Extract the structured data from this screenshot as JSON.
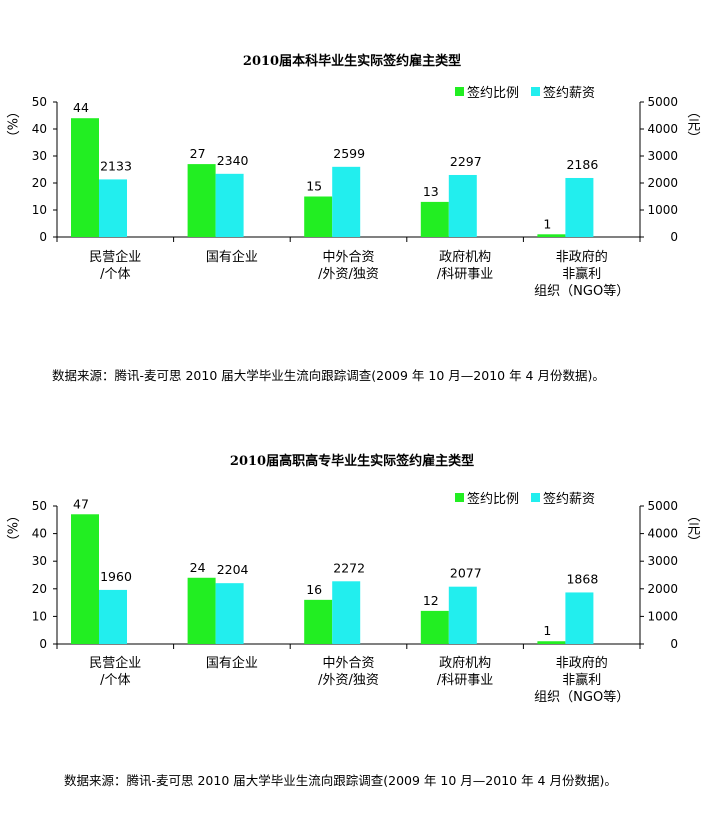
{
  "charts": [
    {
      "title": "2010届本科毕业生实际签约雇主类型",
      "source": "数据来源：腾讯-麦可思 2010 届大学毕业生流向跟踪调查(2009 年 10 月—2010 年 4 月份数据)。"
    },
    {
      "title": "2010届高职高专毕业生实际签约雇主类型",
      "source": "数据来源：腾讯-麦可思 2010 届大学毕业生流向跟踪调查(2009 年 10 月—2010 年 4 月份数据)。"
    }
  ],
  "chart_data": [
    {
      "type": "bar",
      "title": "2010届本科毕业生实际签约雇主类型",
      "categories": [
        "民营企业\n/个体",
        "国有企业",
        "中外合资\n/外资/独资",
        "政府机构\n/科研事业",
        "非政府的\n非赢利\n组织（NGO等）"
      ],
      "series": [
        {
          "name": "签约比例",
          "axis": "left",
          "color": "#22ee22",
          "values": [
            44,
            27,
            15,
            13,
            1
          ]
        },
        {
          "name": "签约薪资",
          "axis": "right",
          "color": "#22eeee",
          "values": [
            2133,
            2340,
            2599,
            2297,
            2186
          ]
        }
      ],
      "ylabel_left": "（%）",
      "ylabel_right": "（元）",
      "ylim_left": [
        0,
        50
      ],
      "ylim_right": [
        0,
        5000
      ],
      "yticks_left": [
        0,
        10,
        20,
        30,
        40,
        50
      ],
      "yticks_right": [
        0,
        1000,
        2000,
        3000,
        4000,
        5000
      ],
      "legend": "top-right",
      "grid": false
    },
    {
      "type": "bar",
      "title": "2010届高职高专毕业生实际签约雇主类型",
      "categories": [
        "民营企业\n/个体",
        "国有企业",
        "中外合资\n/外资/独资",
        "政府机构\n/科研事业",
        "非政府的\n非赢利\n组织（NGO等）"
      ],
      "series": [
        {
          "name": "签约比例",
          "axis": "left",
          "color": "#22ee22",
          "values": [
            47,
            24,
            16,
            12,
            1
          ]
        },
        {
          "name": "签约薪资",
          "axis": "right",
          "color": "#22eeee",
          "values": [
            1960,
            2204,
            2272,
            2077,
            1868
          ]
        }
      ],
      "ylabel_left": "（%）",
      "ylabel_right": "（元）",
      "ylim_left": [
        0,
        50
      ],
      "ylim_right": [
        0,
        5000
      ],
      "yticks_left": [
        0,
        10,
        20,
        30,
        40,
        50
      ],
      "yticks_right": [
        0,
        1000,
        2000,
        3000,
        4000,
        5000
      ],
      "legend": "top-right",
      "grid": false
    }
  ]
}
